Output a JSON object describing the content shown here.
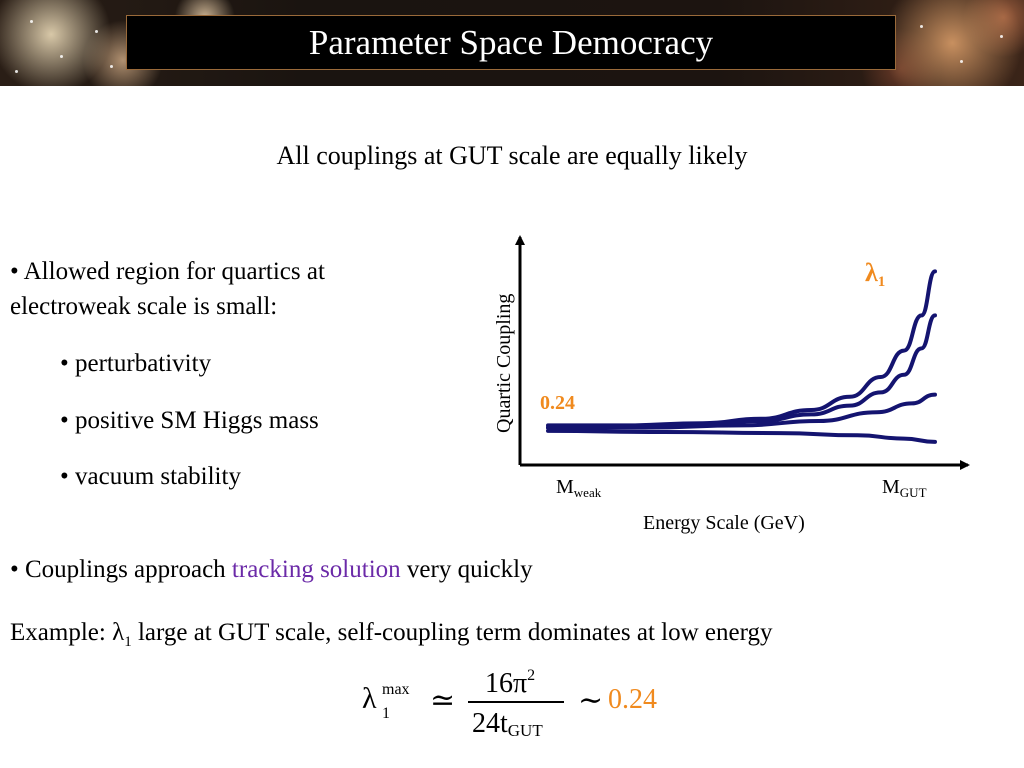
{
  "header": {
    "title": "Parameter Space Democracy"
  },
  "subtitle": "All couplings at GUT scale are equally likely",
  "bullets": {
    "b1_line1": "• Allowed region for quartics at",
    "b1_line2": "electroweak scale is small:",
    "sub1": "• perturbativity",
    "sub2": "• positive SM Higgs mass",
    "sub3": "• vacuum stability",
    "b2_pre": "• Couplings approach ",
    "b2_accent": "tracking solution",
    "b2_post": " very quickly",
    "example_pre": "Example:  ",
    "example_lambda": "λ",
    "example_sub": "1",
    "example_post": " large at GUT scale, self-coupling term dominates at low energy"
  },
  "formula": {
    "lhs": "λ",
    "lhs_sup": "max",
    "lhs_sub": "1",
    "approx": "≃",
    "numerator": "16π",
    "numerator_sup": "2",
    "denominator": "24t",
    "denominator_sub": "GUT",
    "tilde": "∼",
    "value": "0.24"
  },
  "chart_data": {
    "type": "line",
    "ylabel": "Quartic Coupling",
    "xlabel": "Energy Scale (GeV)",
    "x_tick_left": "M",
    "x_tick_left_sub": "weak",
    "x_tick_right": "M",
    "x_tick_right_sub": "GUT",
    "y_marker_label": "0.24",
    "curve_label": "λ",
    "curve_label_sub": "1",
    "xlim": [
      0,
      1
    ],
    "ylim": [
      0,
      1
    ],
    "series": [
      {
        "x": [
          0,
          0.2,
          0.4,
          0.55,
          0.68,
          0.78,
          0.86,
          0.92,
          0.965,
          1.0
        ],
        "values": [
          0.18,
          0.18,
          0.19,
          0.21,
          0.25,
          0.31,
          0.4,
          0.52,
          0.68,
          0.88
        ]
      },
      {
        "x": [
          0,
          0.2,
          0.4,
          0.55,
          0.68,
          0.78,
          0.86,
          0.92,
          0.965,
          1.0
        ],
        "values": [
          0.17,
          0.175,
          0.185,
          0.2,
          0.23,
          0.27,
          0.33,
          0.41,
          0.53,
          0.68
        ]
      },
      {
        "x": [
          0,
          0.25,
          0.5,
          0.7,
          0.85,
          0.94,
          1.0
        ],
        "values": [
          0.17,
          0.17,
          0.18,
          0.2,
          0.24,
          0.28,
          0.32
        ]
      },
      {
        "x": [
          0,
          0.3,
          0.6,
          0.8,
          0.92,
          1.0
        ],
        "values": [
          0.155,
          0.15,
          0.145,
          0.135,
          0.12,
          0.105
        ]
      }
    ],
    "line_color": "#141470",
    "accent_color": "#f08a1e"
  },
  "colors": {
    "title_bg": "#000000",
    "accent": "#6b2aa8",
    "orange": "#f08a1e",
    "curve": "#141470"
  }
}
